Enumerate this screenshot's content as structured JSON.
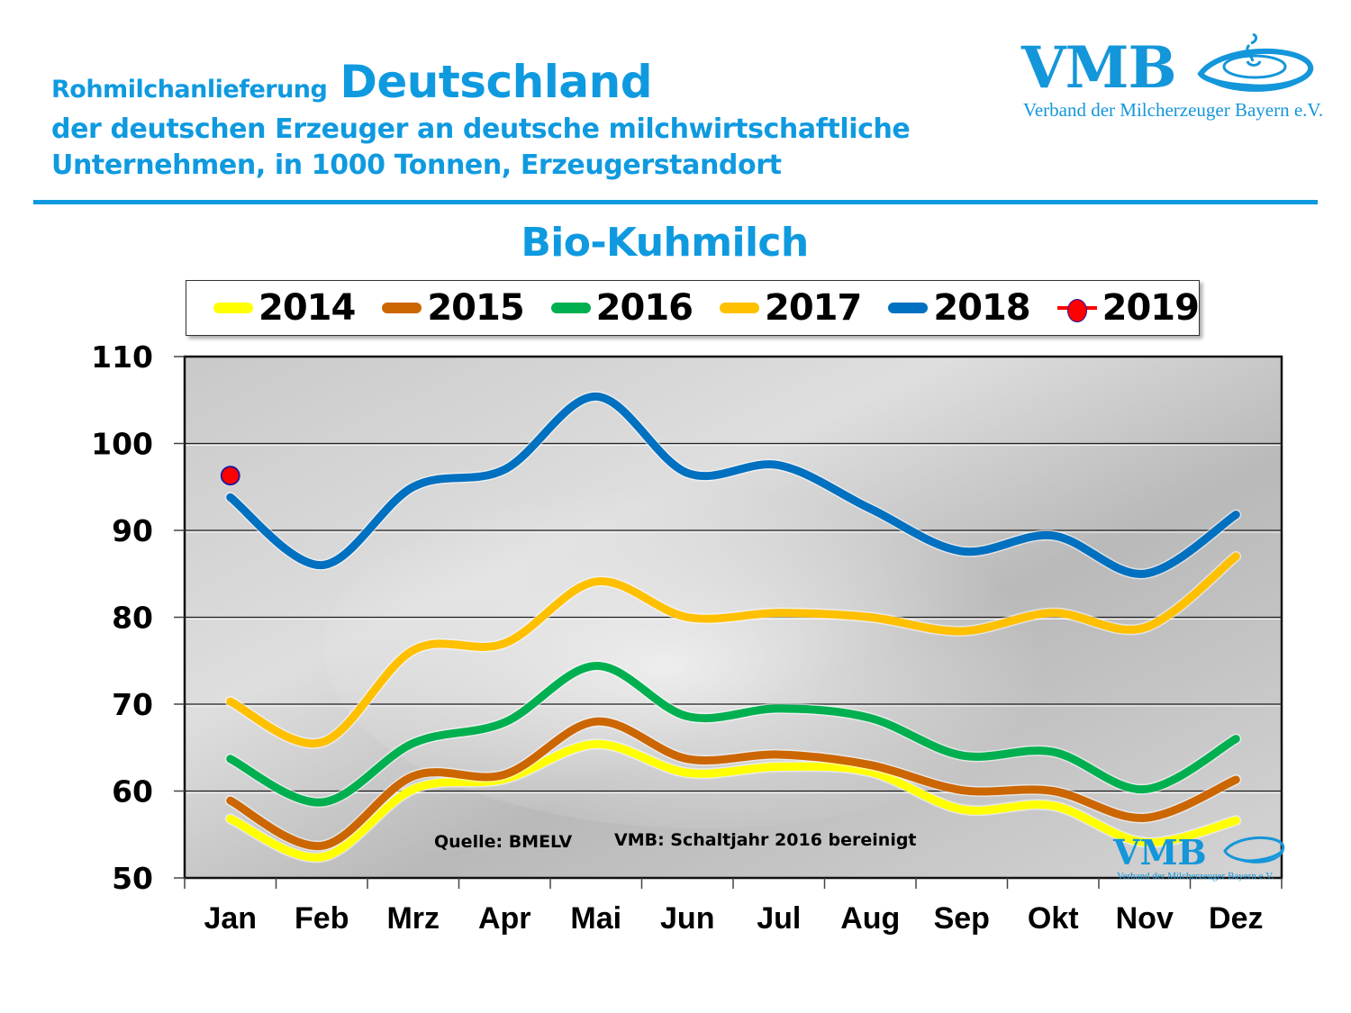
{
  "header": {
    "line1_small": "Rohmilchanlieferung",
    "line1_big": "Deutschland",
    "line2": "der deutschen Erzeuger an deutsche milchwirtschaftliche",
    "line3": "Unternehmen, in 1000 Tonnen, Erzeugerstandort"
  },
  "logo": {
    "text": "VMB",
    "subtitle": "Verband der Milcherzeuger Bayern e.V."
  },
  "colors": {
    "brand_blue": "#0f9ae0",
    "2014": "#ffff00",
    "2015": "#cc6600",
    "2016": "#00b050",
    "2017": "#ffc000",
    "2018": "#0070c0",
    "2019_marker": "#ff0000",
    "2019_marker_edge": "#1a1aa0"
  },
  "chart_data": {
    "type": "line",
    "title": "Bio-Kuhmilch",
    "xlabel": "",
    "ylabel": "",
    "ylim": [
      50,
      110
    ],
    "yticks": [
      50,
      60,
      70,
      80,
      90,
      100,
      110
    ],
    "grid": "horizontal",
    "legend_position": "top",
    "categories": [
      "Jan",
      "Feb",
      "Mrz",
      "Apr",
      "Mai",
      "Jun",
      "Jul",
      "Aug",
      "Sep",
      "Okt",
      "Nov",
      "Dez"
    ],
    "series": [
      {
        "name": "2014",
        "color": "#ffff00",
        "values": [
          56.8,
          52.4,
          60.2,
          61.4,
          65.4,
          62.1,
          62.8,
          62.2,
          57.9,
          58.3,
          54.1,
          56.6
        ]
      },
      {
        "name": "2015",
        "color": "#cc6600",
        "values": [
          58.9,
          53.7,
          61.7,
          61.9,
          68.0,
          63.7,
          64.2,
          63.0,
          60.1,
          60.0,
          56.9,
          61.3
        ]
      },
      {
        "name": "2016",
        "color": "#00b050",
        "values": [
          63.7,
          58.7,
          65.5,
          67.9,
          74.4,
          68.6,
          69.5,
          68.4,
          64.1,
          64.5,
          60.2,
          66.0
        ]
      },
      {
        "name": "2017",
        "color": "#ffc000",
        "values": [
          70.3,
          65.6,
          76.2,
          77.0,
          84.1,
          80.0,
          80.5,
          80.0,
          78.4,
          80.5,
          78.8,
          87.0
        ]
      },
      {
        "name": "2018",
        "color": "#0070c0",
        "values": [
          93.8,
          86.0,
          95.0,
          97.0,
          105.4,
          96.6,
          97.5,
          92.5,
          87.6,
          89.4,
          85.0,
          91.8
        ]
      },
      {
        "name": "2019",
        "color": "#ff0000",
        "marker": "circle",
        "values": [
          96.3
        ]
      }
    ],
    "annotations": [
      "Quelle: BMELV",
      "VMB: Schaltjahr 2016  bereinigt"
    ]
  }
}
